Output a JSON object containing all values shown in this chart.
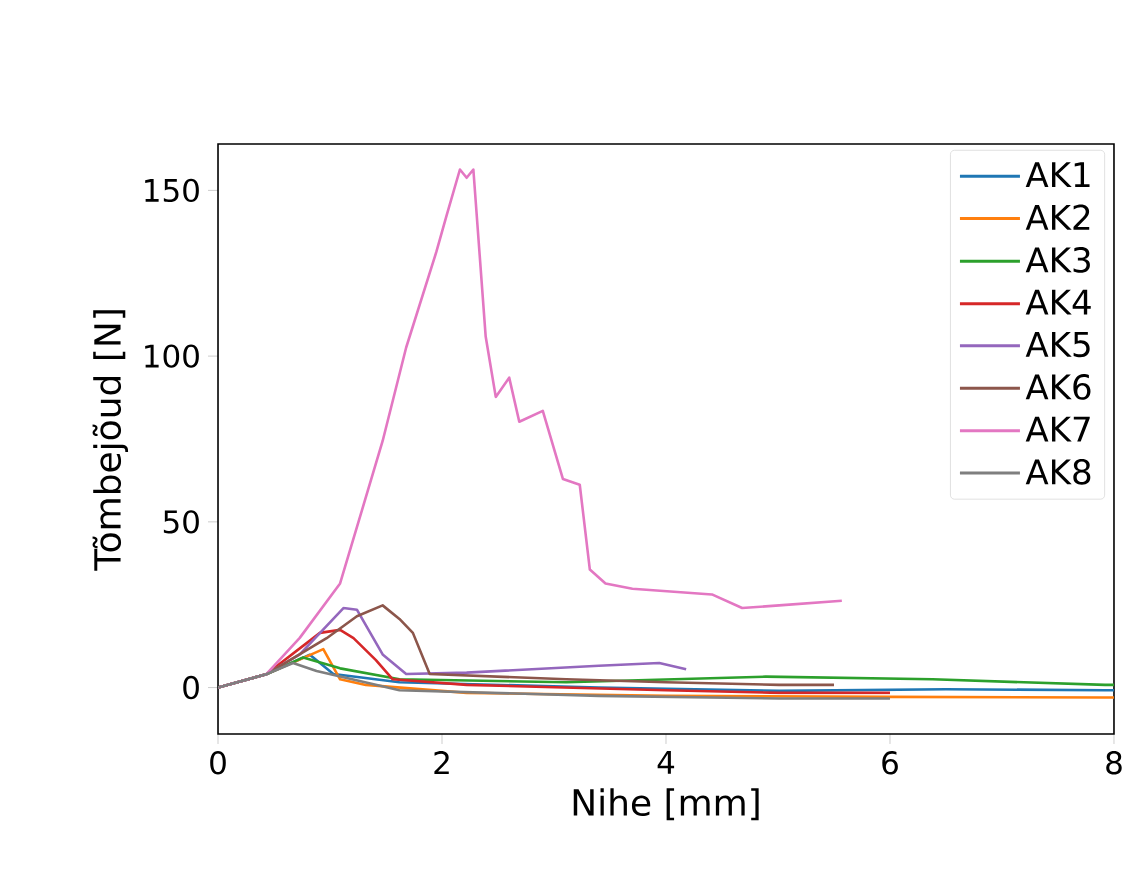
{
  "chart_data": {
    "type": "line",
    "xlabel": "Nihe [mm]",
    "ylabel": "Tõmbejõud [N]",
    "xlim": [
      0,
      8
    ],
    "ylim": [
      -14,
      164
    ],
    "xticks": [
      0,
      2,
      4,
      6,
      8
    ],
    "yticks": [
      0,
      50,
      100,
      150
    ],
    "legend": "top right",
    "grid": false,
    "marker": "none",
    "line_style": "solid",
    "series": [
      {
        "name": "AK1",
        "color": "#1f77b4",
        "x": [
          0,
          0.43,
          0.82,
          1.03,
          1.62,
          3.4,
          5.01,
          6.5,
          7.92,
          8
        ],
        "values": [
          0,
          4,
          9.9,
          4.1,
          1.6,
          0,
          -1,
          -0.5,
          -0.8,
          -0.8
        ]
      },
      {
        "name": "AK2",
        "color": "#ff7f0e",
        "x": [
          0,
          0.43,
          0.94,
          1.09,
          1.32,
          2.22,
          4.0,
          6.0,
          7.92,
          8
        ],
        "values": [
          0,
          4,
          11.6,
          2.5,
          0.8,
          -1.6,
          -2.5,
          -2.8,
          -3.0,
          -3.0
        ]
      },
      {
        "name": "AK3",
        "color": "#2ca02c",
        "x": [
          0,
          0.43,
          0.76,
          1.09,
          1.62,
          3.11,
          4.89,
          6.38,
          7.92,
          8
        ],
        "values": [
          0,
          4,
          9.1,
          5.8,
          2.5,
          1.6,
          3.3,
          2.5,
          0.8,
          0.8
        ]
      },
      {
        "name": "AK4",
        "color": "#d62728",
        "x": [
          0,
          0.43,
          0.91,
          1.09,
          1.21,
          1.41,
          1.56,
          2.22,
          4.0,
          5.01,
          6.0
        ],
        "values": [
          0,
          4,
          16.5,
          17.4,
          14.9,
          8.3,
          2.5,
          0.8,
          -0.8,
          -1.6,
          -1.6
        ]
      },
      {
        "name": "AK5",
        "color": "#9467bd",
        "x": [
          0,
          0.43,
          0.73,
          1.12,
          1.24,
          1.47,
          1.68,
          2.22,
          3.4,
          3.94,
          4.18
        ],
        "values": [
          0,
          4,
          10,
          24,
          23.5,
          10,
          4.1,
          4.5,
          6.6,
          7.4,
          5.5
        ]
      },
      {
        "name": "AK6",
        "color": "#8c564b",
        "x": [
          0,
          0.43,
          0.97,
          1.24,
          1.47,
          1.62,
          1.74,
          1.89,
          3.11,
          4.0,
          5.01,
          5.5
        ],
        "values": [
          0,
          4,
          14.9,
          21.5,
          24.8,
          20.7,
          16.5,
          4.1,
          2.5,
          1.6,
          0.8,
          0.8
        ]
      },
      {
        "name": "AK7",
        "color": "#e377c2",
        "x": [
          0,
          0.43,
          0.73,
          1.09,
          1.47,
          1.68,
          1.95,
          2.04,
          2.16,
          2.22,
          2.28,
          2.39,
          2.48,
          2.6,
          2.69,
          2.9,
          3.08,
          3.23,
          3.32,
          3.46,
          3.7,
          4.41,
          4.68,
          5.01,
          5.57
        ],
        "values": [
          0,
          4,
          15,
          31.4,
          74.4,
          102.6,
          131.5,
          142.3,
          156.3,
          153.8,
          156.3,
          105.9,
          87.7,
          93.5,
          80.2,
          83.5,
          62.9,
          61.2,
          35.6,
          31.4,
          29.8,
          28.1,
          24.0,
          24.8,
          26.2
        ]
      },
      {
        "name": "AK8",
        "color": "#7f7f7f",
        "x": [
          0,
          0.43,
          0.67,
          0.88,
          1.62,
          3.4,
          5.01,
          6.0
        ],
        "values": [
          0,
          4,
          7.4,
          5,
          -0.8,
          -2.5,
          -3.3,
          -3.3
        ]
      }
    ]
  }
}
